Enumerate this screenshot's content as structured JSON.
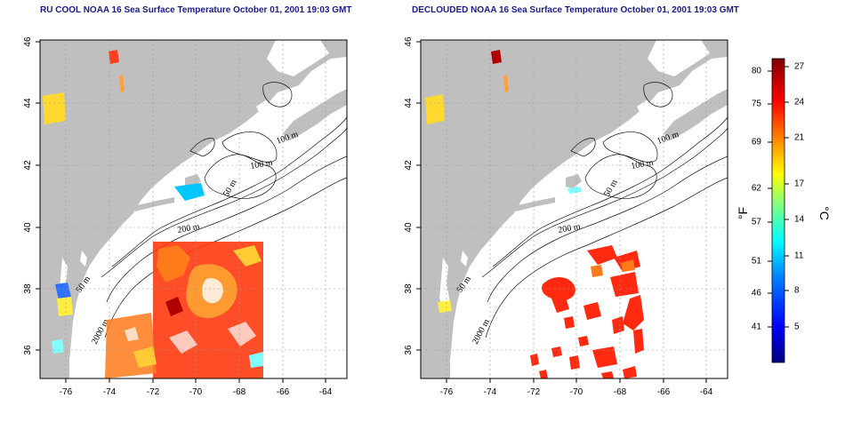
{
  "panels": [
    {
      "id": "ru-cool",
      "title": "RU COOL NOAA 16 Sea Surface Temperature October 01, 2001 19:03 GMT"
    },
    {
      "id": "declouded",
      "title": "DECLOUDED NOAA 16 Sea Surface Temperature October 01, 2001 19:03 GMT"
    }
  ],
  "axes": {
    "lon_ticks": [
      "-76",
      "-74",
      "-72",
      "-70",
      "-68",
      "-66",
      "-64"
    ],
    "lat_ticks": [
      "46",
      "44",
      "42",
      "40",
      "38",
      "36"
    ],
    "lon_range": [
      -77.2,
      -63.0
    ],
    "lat_range": [
      35.0,
      46.0
    ],
    "grid": "dotted"
  },
  "contour_labels": [
    "100 m",
    "100 m",
    "50 m",
    "200 m",
    "50 m",
    "2000 m"
  ],
  "colorbar": {
    "fahrenheit_label": "°F",
    "celsius_label": "°C",
    "fahrenheit_ticks": [
      "80",
      "75",
      "69",
      "62",
      "57",
      "51",
      "46",
      "41"
    ],
    "celsius_ticks": [
      "27",
      "24",
      "21",
      "17",
      "14",
      "11",
      "8",
      "5"
    ],
    "range_c": [
      2,
      28
    ],
    "colors": [
      "#000080",
      "#0000ff",
      "#0080ff",
      "#00ffff",
      "#80ff80",
      "#ffff00",
      "#ff8000",
      "#ff0000",
      "#800000"
    ]
  },
  "colors": {
    "land": "#bfbfbf",
    "ocean": "#ffffff",
    "sst_warm": "#ff2a10",
    "sst_orange": "#ff7a1a"
  }
}
